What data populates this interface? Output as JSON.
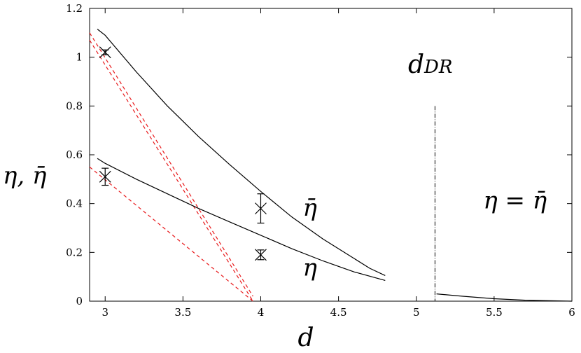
{
  "chart_data": {
    "type": "line",
    "xlabel": "d",
    "ylabel": "η, η̄",
    "xlim": [
      2.9,
      6
    ],
    "ylim": [
      0,
      1.2
    ],
    "x_ticks": [
      3,
      3.5,
      4,
      4.5,
      5,
      5.5,
      6
    ],
    "y_ticks": [
      0,
      0.2,
      0.4,
      0.6,
      0.8,
      1,
      1.2
    ],
    "grid": false,
    "legend": "none",
    "series": [
      {
        "kind": "curve",
        "label": "η̄",
        "points": [
          [
            2.95,
            1.115
          ],
          [
            3.0,
            1.09
          ],
          [
            3.2,
            0.94
          ],
          [
            3.4,
            0.8
          ],
          [
            3.6,
            0.675
          ],
          [
            3.8,
            0.56
          ],
          [
            4.0,
            0.45
          ],
          [
            4.2,
            0.345
          ],
          [
            4.4,
            0.255
          ],
          [
            4.6,
            0.175
          ],
          [
            4.7,
            0.135
          ],
          [
            4.8,
            0.105
          ]
        ]
      },
      {
        "kind": "curve",
        "label": "η",
        "points": [
          [
            2.95,
            0.585
          ],
          [
            3.0,
            0.565
          ],
          [
            3.2,
            0.5
          ],
          [
            3.4,
            0.44
          ],
          [
            3.6,
            0.38
          ],
          [
            3.8,
            0.325
          ],
          [
            4.0,
            0.27
          ],
          [
            4.2,
            0.215
          ],
          [
            4.4,
            0.165
          ],
          [
            4.6,
            0.12
          ],
          [
            4.8,
            0.085
          ]
        ]
      },
      {
        "kind": "curve",
        "label": "η = η̄",
        "points": [
          [
            5.13,
            0.03
          ],
          [
            5.3,
            0.02
          ],
          [
            5.5,
            0.01
          ],
          [
            5.7,
            0.004
          ],
          [
            6.0,
            0.0
          ]
        ]
      },
      {
        "kind": "fit",
        "color": "#e8191b",
        "points": [
          [
            2.9,
            1.1
          ],
          [
            3.95,
            0.02
          ]
        ]
      },
      {
        "kind": "fit",
        "color": "#e8191b",
        "points": [
          [
            2.9,
            1.07
          ],
          [
            3.95,
            0.0
          ]
        ]
      },
      {
        "kind": "fit",
        "color": "#e8191b",
        "points": [
          [
            2.9,
            0.55
          ],
          [
            3.95,
            0.0
          ]
        ]
      }
    ],
    "points": [
      {
        "x": 3.0,
        "y": 1.02,
        "err": 0.01
      },
      {
        "x": 3.0,
        "y": 0.51,
        "err": 0.035
      },
      {
        "x": 4.0,
        "y": 0.38,
        "err": 0.06
      },
      {
        "x": 4.0,
        "y": 0.19,
        "err": 0.02
      }
    ],
    "annotations": [
      {
        "text": "η̄",
        "x": 4.27,
        "y": 0.35
      },
      {
        "text": "η",
        "x": 4.27,
        "y": 0.105
      },
      {
        "text": "η = η̄",
        "x": 5.43,
        "y": 0.38
      }
    ],
    "vline": {
      "x": 5.12,
      "y_top": 0.8,
      "label_base": "d",
      "label_sub": "DR"
    }
  }
}
